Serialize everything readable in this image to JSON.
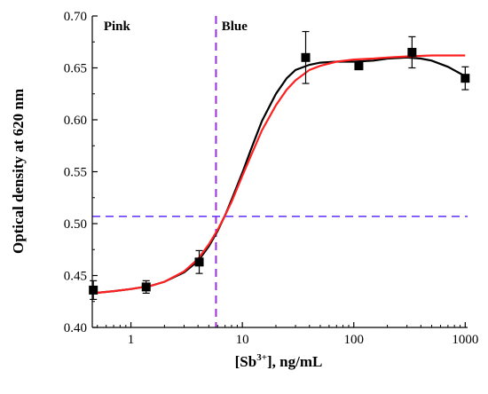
{
  "chart_data": {
    "type": "scatter",
    "x_scale": "log",
    "xlim": [
      0.45,
      1050
    ],
    "ylim": [
      0.4,
      0.7
    ],
    "xlabel_main": "[Sb",
    "xlabel_sup": "3+",
    "xlabel_rest": "], ng/mL",
    "ylabel": "Optical density at 620 nm",
    "x_ticks": [
      {
        "value": 1,
        "label": "1"
      },
      {
        "value": 10,
        "label": "10"
      },
      {
        "value": 100,
        "label": "100"
      },
      {
        "value": 1000,
        "label": "1000"
      }
    ],
    "y_ticks": [
      {
        "value": 0.4,
        "label": "0.40"
      },
      {
        "value": 0.45,
        "label": "0.45"
      },
      {
        "value": 0.5,
        "label": "0.50"
      },
      {
        "value": 0.55,
        "label": "0.55"
      },
      {
        "value": 0.6,
        "label": "0.60"
      },
      {
        "value": 0.65,
        "label": "0.65"
      },
      {
        "value": 0.7,
        "label": "0.70"
      }
    ],
    "regions": [
      {
        "label": "Pink",
        "x": 0.75
      },
      {
        "label": "Blue",
        "x": 8.5
      }
    ],
    "points": [
      {
        "x": 0.46,
        "y": 0.436,
        "err": 0.009
      },
      {
        "x": 1.37,
        "y": 0.439,
        "err": 0.006
      },
      {
        "x": 4.1,
        "y": 0.463,
        "err": 0.011
      },
      {
        "x": 37,
        "y": 0.66,
        "err": 0.025
      },
      {
        "x": 111,
        "y": 0.652,
        "err": 0.003
      },
      {
        "x": 333,
        "y": 0.665,
        "err": 0.015
      },
      {
        "x": 1000,
        "y": 0.64,
        "err": 0.011
      }
    ],
    "fits": [
      {
        "color": "#000000",
        "points": [
          [
            0.46,
            0.433
          ],
          [
            0.7,
            0.435
          ],
          [
            1,
            0.437
          ],
          [
            1.5,
            0.44
          ],
          [
            2,
            0.444
          ],
          [
            3,
            0.453
          ],
          [
            4,
            0.464
          ],
          [
            5,
            0.478
          ],
          [
            6,
            0.493
          ],
          [
            7,
            0.508
          ],
          [
            8,
            0.523
          ],
          [
            10,
            0.549
          ],
          [
            12,
            0.572
          ],
          [
            15,
            0.599
          ],
          [
            20,
            0.625
          ],
          [
            25,
            0.64
          ],
          [
            30,
            0.648
          ],
          [
            40,
            0.653
          ],
          [
            50,
            0.655
          ],
          [
            70,
            0.656
          ],
          [
            100,
            0.656
          ],
          [
            150,
            0.657
          ],
          [
            200,
            0.659
          ],
          [
            300,
            0.66
          ],
          [
            400,
            0.659
          ],
          [
            500,
            0.657
          ],
          [
            700,
            0.651
          ],
          [
            1000,
            0.642
          ]
        ]
      },
      {
        "color": "#ff2020",
        "points": [
          [
            0.46,
            0.433
          ],
          [
            0.7,
            0.435
          ],
          [
            1,
            0.437
          ],
          [
            1.5,
            0.44
          ],
          [
            2,
            0.444
          ],
          [
            3,
            0.454
          ],
          [
            4,
            0.466
          ],
          [
            5,
            0.48
          ],
          [
            6,
            0.494
          ],
          [
            7,
            0.508
          ],
          [
            8,
            0.521
          ],
          [
            10,
            0.546
          ],
          [
            12,
            0.566
          ],
          [
            15,
            0.59
          ],
          [
            20,
            0.614
          ],
          [
            25,
            0.629
          ],
          [
            30,
            0.638
          ],
          [
            40,
            0.648
          ],
          [
            50,
            0.652
          ],
          [
            70,
            0.656
          ],
          [
            100,
            0.658
          ],
          [
            150,
            0.659
          ],
          [
            200,
            0.66
          ],
          [
            300,
            0.661
          ],
          [
            500,
            0.662
          ],
          [
            700,
            0.662
          ],
          [
            1000,
            0.662
          ]
        ]
      }
    ],
    "guides": {
      "x": {
        "value": 5.8,
        "color": "#9b30d8"
      },
      "y": {
        "value": 0.507,
        "color": "#6a3cff"
      }
    }
  }
}
